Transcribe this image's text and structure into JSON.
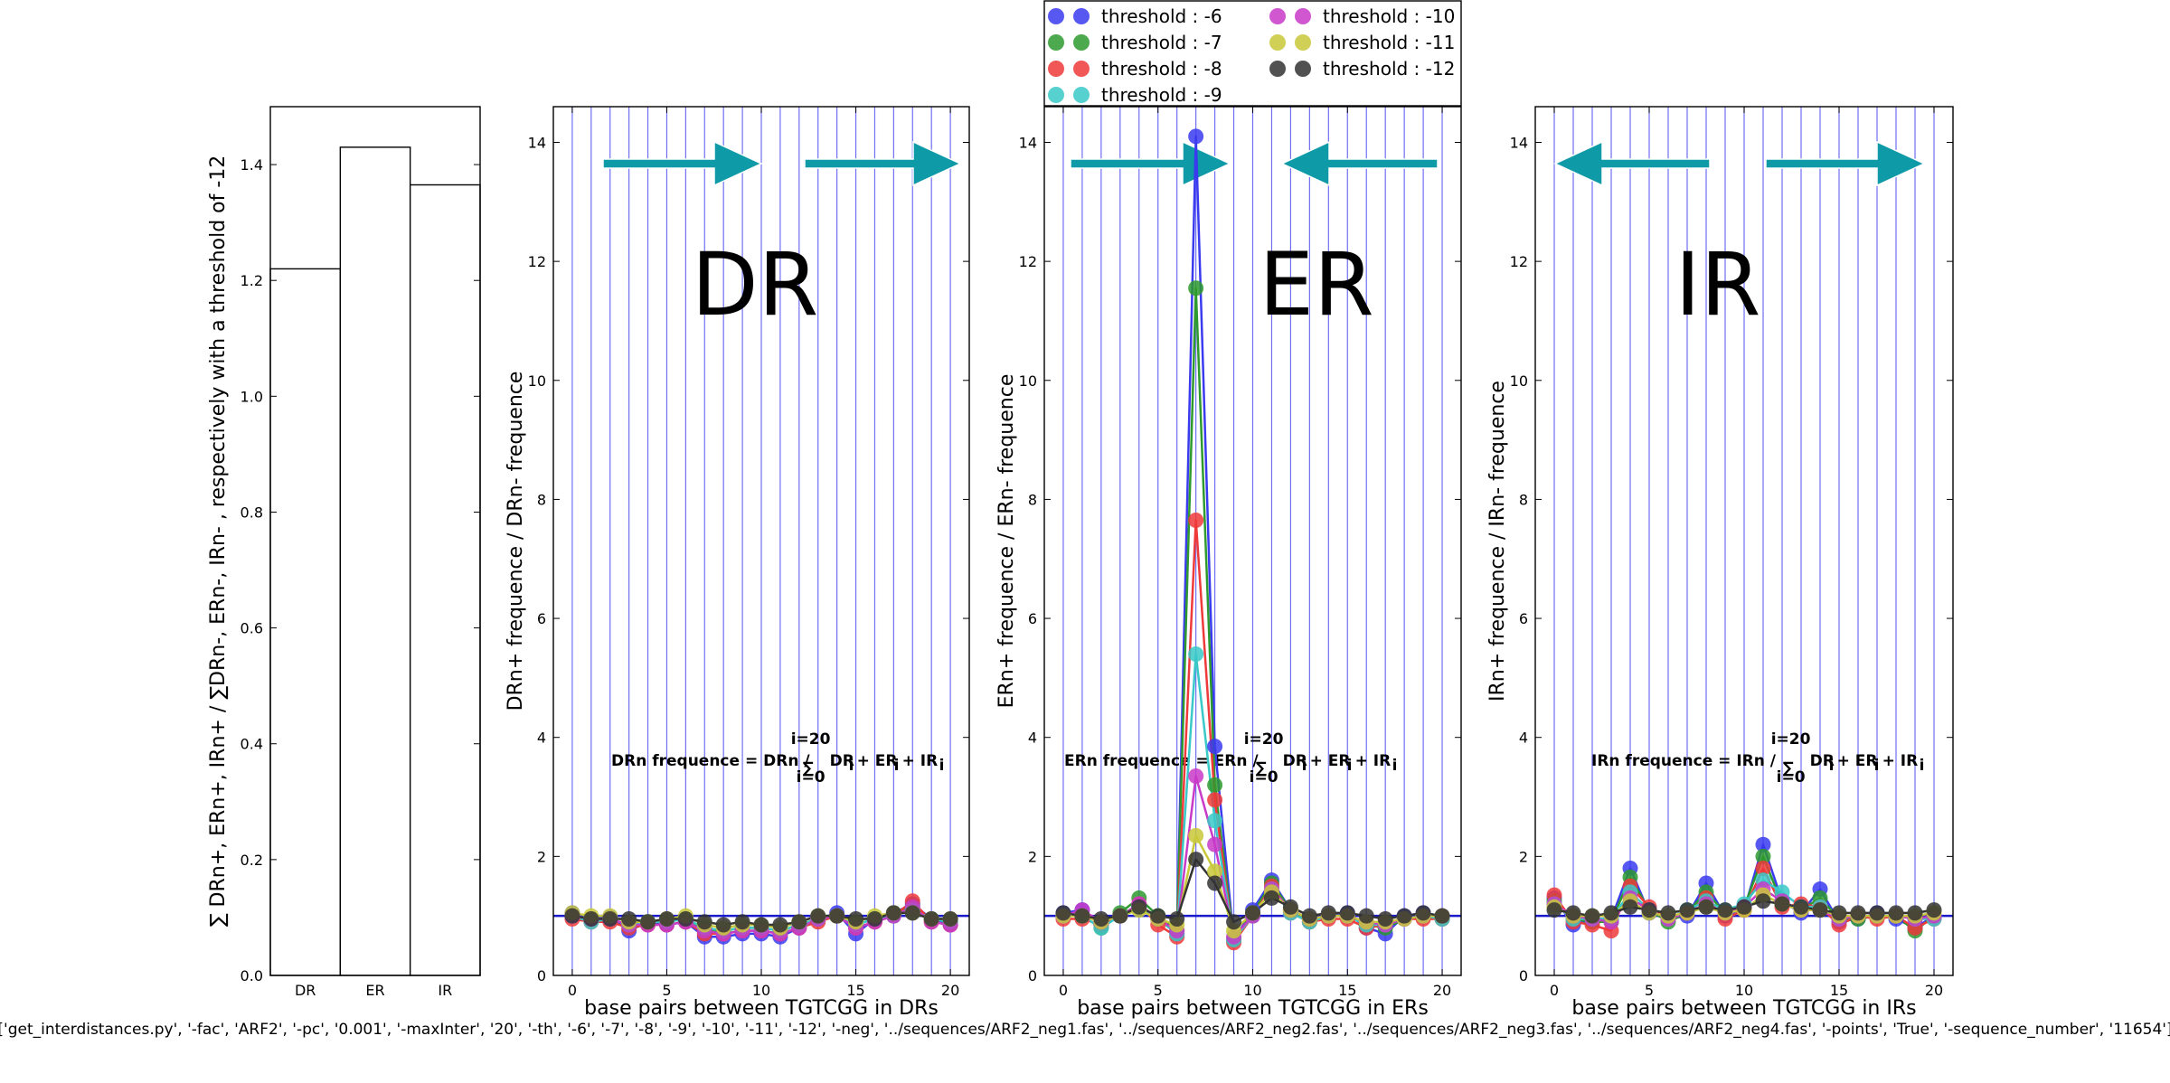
{
  "footer": {
    "command_line": "['get_interdistances.py', '-fac', 'ARF2', '-pc', '0.001', '-maxInter', '20', '-th', '-6', '-7', '-8', '-9', '-10', '-11', '-12', '-neg', '../sequences/ARF2_neg1.fas', '../sequences/ARF2_neg2.fas', '../sequences/ARF2_neg3.fas', '../sequences/ARF2_neg4.fas', '-points', 'True', '-sequence_number', '11654']"
  },
  "legend": {
    "entries": [
      {
        "label": "threshold : -6",
        "color": "#3a3aee"
      },
      {
        "label": "threshold : -7",
        "color": "#2e9a2e"
      },
      {
        "label": "threshold : -8",
        "color": "#ee3a3a"
      },
      {
        "label": "threshold : -9",
        "color": "#3ac8c8"
      },
      {
        "label": "threshold : -10",
        "color": "#c83ac8"
      },
      {
        "label": "threshold : -11",
        "color": "#c8c83a"
      },
      {
        "label": "threshold : -12",
        "color": "#333333"
      }
    ],
    "placement": "top-center above ER panel, 2 columns"
  },
  "chart_data": [
    {
      "type": "bar",
      "categories": [
        "DR",
        "ER",
        "IR"
      ],
      "values": [
        1.22,
        1.43,
        1.365
      ],
      "ylabel": "∑ DRn+, ERn+, IRn+ / ∑DRn-, ERn-, IRn- , respectively with a threshold of -12",
      "ylim": [
        0,
        1.5
      ],
      "yticks": [
        "0.0",
        "0.2",
        "0.4",
        "0.6",
        "0.8",
        "1.0",
        "1.2",
        "1.4"
      ]
    },
    {
      "type": "line",
      "panel": "DR",
      "big_label": "DR",
      "xlabel": "base pairs between TGTCGG in DRs",
      "ylabel": "DRn+ frequence / DRn- frequence",
      "formula_prefix": "DRn frequence = DRn /",
      "formula_sum_top": "i=20",
      "formula_sum_bottom": "i=0",
      "formula_terms": "DR",
      "formula_plus1": "+ ER",
      "formula_plus2": "+ IR",
      "formula_sub": "i",
      "arrows": "right-right",
      "xlim": [
        -1,
        21
      ],
      "ylim": [
        0,
        14.6
      ],
      "xticks": [
        "0",
        "5",
        "10",
        "15",
        "20"
      ],
      "yticks": [
        "0",
        "2",
        "4",
        "6",
        "8",
        "10",
        "12",
        "14"
      ],
      "x": [
        0,
        1,
        2,
        3,
        4,
        5,
        6,
        7,
        8,
        9,
        10,
        11,
        12,
        13,
        14,
        15,
        16,
        17,
        18,
        19,
        20
      ],
      "series": [
        {
          "values": [
            1.05,
            0.95,
            0.98,
            0.75,
            0.9,
            0.85,
            0.9,
            0.65,
            0.65,
            0.7,
            0.7,
            0.65,
            0.8,
            0.95,
            1.05,
            0.7,
            0.95,
            1.05,
            1.2,
            0.95,
            0.85
          ]
        },
        {
          "values": [
            1.0,
            0.95,
            0.95,
            0.85,
            0.9,
            0.9,
            0.95,
            0.75,
            0.75,
            0.8,
            0.8,
            0.75,
            0.85,
            0.95,
            1.0,
            0.85,
            0.95,
            1.05,
            1.15,
            0.95,
            0.9
          ]
        },
        {
          "values": [
            0.95,
            0.9,
            0.9,
            0.8,
            0.85,
            0.85,
            0.9,
            0.7,
            0.7,
            0.75,
            0.75,
            0.7,
            0.8,
            0.9,
            1.0,
            0.8,
            0.9,
            1.0,
            1.25,
            0.9,
            0.85
          ]
        },
        {
          "values": [
            1.0,
            0.9,
            0.95,
            0.85,
            0.9,
            0.9,
            0.95,
            0.8,
            0.75,
            0.8,
            0.8,
            0.75,
            0.85,
            0.95,
            1.0,
            0.85,
            0.95,
            1.0,
            1.1,
            0.95,
            0.9
          ]
        },
        {
          "values": [
            1.0,
            0.95,
            0.95,
            0.85,
            0.85,
            0.85,
            0.9,
            0.75,
            0.7,
            0.75,
            0.75,
            0.7,
            0.8,
            0.95,
            1.0,
            0.8,
            0.9,
            1.0,
            1.15,
            0.9,
            0.85
          ]
        },
        {
          "values": [
            1.05,
            1.0,
            1.0,
            0.9,
            0.9,
            0.95,
            1.0,
            0.85,
            0.8,
            0.85,
            0.85,
            0.8,
            0.9,
            1.0,
            1.0,
            0.9,
            1.0,
            1.05,
            1.05,
            0.95,
            0.95
          ]
        },
        {
          "values": [
            1.0,
            0.95,
            0.95,
            0.95,
            0.9,
            0.95,
            0.95,
            0.9,
            0.85,
            0.9,
            0.85,
            0.85,
            0.9,
            1.0,
            1.0,
            0.95,
            0.95,
            1.05,
            1.05,
            0.95,
            0.95
          ]
        }
      ]
    },
    {
      "type": "line",
      "panel": "ER",
      "big_label": "ER",
      "xlabel": "base pairs between TGTCGG in ERs",
      "ylabel": "ERn+ frequence / ERn- frequence",
      "formula_prefix": "ERn frequence = ERn /",
      "formula_sum_top": "i=20",
      "formula_sum_bottom": "i=0",
      "formula_terms": "DR",
      "formula_plus1": "+ ER",
      "formula_plus2": "+ IR",
      "formula_sub": "i",
      "arrows": "right-left",
      "xlim": [
        -1,
        21
      ],
      "ylim": [
        0,
        14.6
      ],
      "xticks": [
        "0",
        "5",
        "10",
        "15",
        "20"
      ],
      "yticks": [
        "0",
        "2",
        "4",
        "6",
        "8",
        "10",
        "12",
        "14"
      ],
      "x": [
        0,
        1,
        2,
        3,
        4,
        5,
        6,
        7,
        8,
        9,
        10,
        11,
        12,
        13,
        14,
        15,
        16,
        17,
        18,
        19,
        20
      ],
      "series": [
        {
          "values": [
            1.05,
            1.1,
            0.85,
            1.0,
            1.15,
            0.95,
            0.7,
            14.1,
            3.85,
            0.6,
            1.1,
            1.6,
            1.1,
            0.95,
            1.0,
            1.05,
            0.8,
            0.7,
            1.0,
            1.05,
            1.0
          ]
        },
        {
          "values": [
            1.0,
            1.0,
            0.8,
            1.05,
            1.3,
            1.0,
            0.75,
            11.55,
            3.2,
            0.6,
            1.05,
            1.55,
            1.1,
            0.9,
            1.0,
            1.0,
            0.85,
            0.8,
            0.95,
            1.0,
            0.95
          ]
        },
        {
          "values": [
            0.95,
            0.95,
            0.85,
            1.0,
            1.2,
            0.85,
            0.65,
            7.65,
            2.95,
            0.55,
            1.0,
            1.5,
            1.05,
            0.9,
            0.95,
            0.95,
            0.8,
            0.85,
            0.95,
            0.95,
            0.95
          ]
        },
        {
          "values": [
            1.0,
            1.0,
            0.8,
            1.0,
            1.15,
            0.95,
            0.7,
            5.4,
            2.6,
            0.6,
            1.0,
            1.45,
            1.05,
            0.9,
            1.0,
            1.0,
            0.85,
            0.85,
            0.95,
            1.0,
            0.95
          ]
        },
        {
          "values": [
            1.0,
            1.1,
            0.9,
            1.0,
            1.2,
            0.95,
            0.75,
            3.35,
            2.2,
            0.65,
            1.0,
            1.45,
            1.1,
            0.95,
            1.0,
            1.0,
            0.9,
            0.85,
            0.95,
            1.0,
            1.0
          ]
        },
        {
          "values": [
            1.0,
            1.0,
            0.9,
            1.0,
            1.1,
            0.95,
            0.85,
            2.35,
            1.75,
            0.75,
            1.05,
            1.4,
            1.1,
            0.95,
            1.0,
            1.0,
            0.9,
            0.9,
            0.95,
            1.0,
            1.0
          ]
        },
        {
          "values": [
            1.05,
            1.0,
            0.95,
            1.0,
            1.15,
            1.0,
            0.95,
            1.95,
            1.55,
            0.9,
            1.05,
            1.3,
            1.15,
            1.0,
            1.05,
            1.05,
            1.0,
            0.95,
            1.0,
            1.05,
            1.0
          ]
        }
      ]
    },
    {
      "type": "line",
      "panel": "IR",
      "big_label": "IR",
      "xlabel": "base pairs between TGTCGG in IRs",
      "ylabel": "IRn+ frequence / IRn- frequence",
      "formula_prefix": "IRn frequence = IRn /",
      "formula_sum_top": "i=20",
      "formula_sum_bottom": "i=0",
      "formula_terms": "DR",
      "formula_plus1": "+ ER",
      "formula_plus2": "+ IR",
      "formula_sub": "i",
      "arrows": "left-right",
      "xlim": [
        -1,
        21
      ],
      "ylim": [
        0,
        14.6
      ],
      "xticks": [
        "0",
        "5",
        "10",
        "15",
        "20"
      ],
      "yticks": [
        "0",
        "2",
        "4",
        "6",
        "8",
        "10",
        "12",
        "14"
      ],
      "x": [
        0,
        1,
        2,
        3,
        4,
        5,
        6,
        7,
        8,
        9,
        10,
        11,
        12,
        13,
        14,
        15,
        16,
        17,
        18,
        19,
        20
      ],
      "series": [
        {
          "values": [
            1.3,
            0.85,
            0.95,
            0.95,
            1.8,
            1.05,
            0.95,
            1.0,
            1.55,
            1.0,
            1.1,
            2.2,
            1.25,
            1.05,
            1.45,
            0.9,
            0.95,
            1.05,
            0.95,
            0.8,
            1.0
          ]
        },
        {
          "values": [
            1.25,
            0.95,
            0.9,
            0.9,
            1.65,
            1.1,
            0.9,
            1.05,
            1.4,
            1.05,
            1.15,
            2.0,
            1.2,
            1.1,
            1.3,
            0.95,
            0.95,
            1.0,
            1.0,
            0.75,
            1.0
          ]
        },
        {
          "values": [
            1.35,
            0.9,
            0.85,
            0.75,
            1.5,
            1.15,
            0.95,
            1.05,
            1.3,
            0.95,
            1.1,
            1.8,
            1.15,
            1.2,
            1.15,
            0.85,
            1.0,
            0.95,
            1.0,
            0.8,
            0.95
          ]
        },
        {
          "values": [
            1.2,
            0.95,
            0.95,
            0.95,
            1.4,
            1.1,
            0.95,
            1.1,
            1.25,
            1.1,
            1.2,
            1.6,
            1.4,
            1.15,
            1.15,
            0.95,
            1.0,
            1.0,
            1.0,
            0.95,
            0.95
          ]
        },
        {
          "values": [
            1.2,
            1.0,
            0.95,
            0.9,
            1.3,
            1.1,
            0.95,
            1.05,
            1.2,
            1.05,
            1.15,
            1.45,
            1.25,
            1.1,
            1.1,
            0.95,
            1.0,
            1.0,
            1.0,
            0.95,
            1.0
          ]
        },
        {
          "values": [
            1.15,
            1.0,
            1.0,
            1.0,
            1.25,
            1.05,
            1.0,
            1.05,
            1.15,
            1.05,
            1.1,
            1.35,
            1.2,
            1.1,
            1.1,
            1.0,
            1.0,
            1.0,
            1.0,
            1.0,
            1.05
          ]
        },
        {
          "values": [
            1.1,
            1.05,
            1.0,
            1.05,
            1.15,
            1.1,
            1.05,
            1.1,
            1.15,
            1.1,
            1.15,
            1.25,
            1.2,
            1.15,
            1.1,
            1.05,
            1.05,
            1.05,
            1.05,
            1.05,
            1.1
          ]
        }
      ]
    }
  ]
}
